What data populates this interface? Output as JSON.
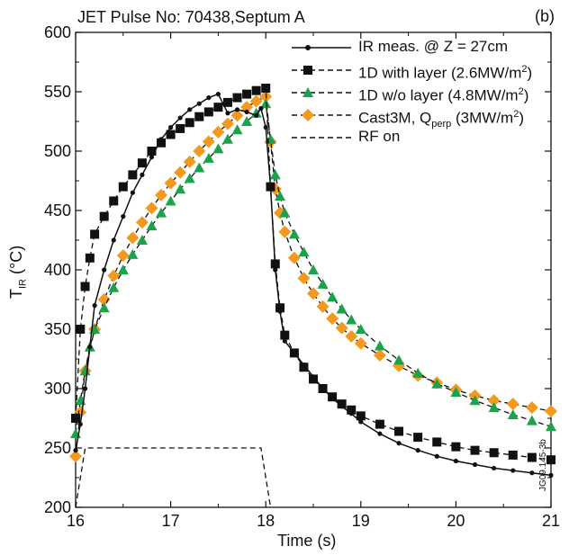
{
  "chart_data": {
    "type": "line",
    "title": "JET Pulse No: 70438,Septum A",
    "panel_label": "(b)",
    "xlabel": "Time (s)",
    "ylabel": {
      "main": "T",
      "sub": "IR",
      "rest": " (°C)"
    },
    "xlim": [
      16,
      21
    ],
    "ylim": [
      200,
      600
    ],
    "xticks": [
      "16",
      "17",
      "18",
      "19",
      "20",
      "21"
    ],
    "yticks": [
      "200",
      "250",
      "300",
      "350",
      "400",
      "450",
      "500",
      "550",
      "600"
    ],
    "grid": false,
    "legend_position": "top-right",
    "series": [
      {
        "name": "IR meas. @ Z = 27cm",
        "color": "#111111",
        "marker": "dot",
        "line": "solid",
        "x": [
          16.0,
          16.05,
          16.1,
          16.15,
          16.2,
          16.3,
          16.4,
          16.5,
          16.6,
          16.7,
          16.8,
          16.9,
          17.0,
          17.1,
          17.2,
          17.3,
          17.4,
          17.5,
          17.6,
          17.7,
          17.8,
          17.9,
          17.95,
          18.0,
          18.05,
          18.1,
          18.15,
          18.2,
          18.3,
          18.4,
          18.5,
          18.6,
          18.7,
          18.8,
          18.9,
          19.0,
          19.2,
          19.4,
          19.6,
          19.8,
          20.0,
          20.2,
          20.4,
          20.6,
          20.8,
          21.0
        ],
        "y": [
          248,
          270,
          300,
          335,
          370,
          400,
          425,
          445,
          465,
          480,
          495,
          510,
          520,
          528,
          535,
          540,
          545,
          548,
          532,
          535,
          533,
          530,
          536,
          520,
          470,
          400,
          365,
          340,
          330,
          320,
          310,
          300,
          292,
          285,
          279,
          272,
          262,
          254,
          248,
          243,
          239,
          236,
          233,
          231,
          229,
          227
        ]
      },
      {
        "name": "1D with layer (2.6MW/m²)",
        "name_parts": {
          "main": "1D with layer (2.6MW/m",
          "sup": "2",
          "end": ")"
        },
        "color": "#111111",
        "marker": "square",
        "line": "dashed",
        "x": [
          16.0,
          16.05,
          16.1,
          16.15,
          16.2,
          16.3,
          16.4,
          16.5,
          16.6,
          16.7,
          16.8,
          16.9,
          17.0,
          17.1,
          17.2,
          17.3,
          17.4,
          17.5,
          17.6,
          17.7,
          17.8,
          17.9,
          18.0,
          18.05,
          18.1,
          18.15,
          18.2,
          18.3,
          18.4,
          18.5,
          18.6,
          18.7,
          18.8,
          18.9,
          19.0,
          19.2,
          19.4,
          19.6,
          19.8,
          20.0,
          20.2,
          20.4,
          20.6,
          20.8,
          21.0
        ],
        "y": [
          275,
          350,
          386,
          410,
          430,
          445,
          458,
          470,
          480,
          490,
          500,
          507,
          514,
          519,
          524,
          529,
          533,
          537,
          541,
          545,
          548,
          551,
          553,
          470,
          405,
          368,
          345,
          330,
          318,
          308,
          300,
          293,
          287,
          282,
          277,
          270,
          264,
          259,
          255,
          251,
          248,
          246,
          244,
          242,
          240
        ]
      },
      {
        "name": "1D w/o layer (4.8MW/m²)",
        "name_parts": {
          "main": "1D w/o layer (4.8MW/m",
          "sup": "2",
          "end": ")"
        },
        "color": "#1aa34a",
        "marker": "triangle",
        "line": "dashed",
        "x": [
          16.0,
          16.05,
          16.1,
          16.15,
          16.2,
          16.3,
          16.4,
          16.5,
          16.6,
          16.7,
          16.8,
          16.9,
          17.0,
          17.1,
          17.2,
          17.3,
          17.4,
          17.5,
          17.6,
          17.7,
          17.8,
          17.9,
          18.0,
          18.05,
          18.1,
          18.15,
          18.2,
          18.3,
          18.4,
          18.5,
          18.6,
          18.7,
          18.8,
          18.9,
          19.0,
          19.2,
          19.4,
          19.6,
          19.8,
          20.0,
          20.2,
          20.4,
          20.6,
          20.8,
          21.0
        ],
        "y": [
          262,
          290,
          315,
          335,
          350,
          368,
          385,
          400,
          413,
          425,
          437,
          448,
          458,
          468,
          477,
          486,
          494,
          502,
          510,
          518,
          525,
          532,
          540,
          510,
          480,
          462,
          448,
          430,
          415,
          400,
          388,
          377,
          367,
          358,
          350,
          336,
          324,
          313,
          304,
          297,
          290,
          284,
          278,
          273,
          268
        ]
      },
      {
        "name": "Cast3M, Qperp (3MW/m²)",
        "name_parts": {
          "main": "Cast3M, Q",
          "sub": "perp",
          "main2": " (3MW/m",
          "sup": "2",
          "end": ")"
        },
        "color": "#f39a1e",
        "marker": "diamond",
        "line": "dashed",
        "x": [
          16.0,
          16.05,
          16.1,
          16.2,
          16.3,
          16.4,
          16.5,
          16.6,
          16.7,
          16.8,
          16.9,
          17.0,
          17.1,
          17.2,
          17.3,
          17.4,
          17.5,
          17.6,
          17.7,
          17.8,
          17.9,
          18.0,
          18.05,
          18.1,
          18.15,
          18.2,
          18.3,
          18.4,
          18.5,
          18.6,
          18.7,
          18.8,
          18.9,
          19.0,
          19.2,
          19.4,
          19.6,
          19.8,
          20.0,
          20.2,
          20.4,
          20.6,
          20.8,
          21.0
        ],
        "y": [
          243,
          280,
          315,
          350,
          375,
          395,
          412,
          427,
          440,
          452,
          463,
          473,
          482,
          491,
          500,
          508,
          516,
          523,
          530,
          537,
          542,
          546,
          508,
          468,
          448,
          432,
          410,
          393,
          380,
          369,
          359,
          351,
          344,
          338,
          328,
          319,
          311,
          305,
          299,
          294,
          290,
          287,
          284,
          281
        ]
      },
      {
        "name": "RF on",
        "color": "#111111",
        "marker": "none",
        "line": "dashed",
        "x": [
          16.0,
          16.1,
          17.95,
          18.05
        ],
        "y": [
          200,
          250,
          250,
          200
        ]
      }
    ]
  },
  "side_code": "JG09.145-3b"
}
